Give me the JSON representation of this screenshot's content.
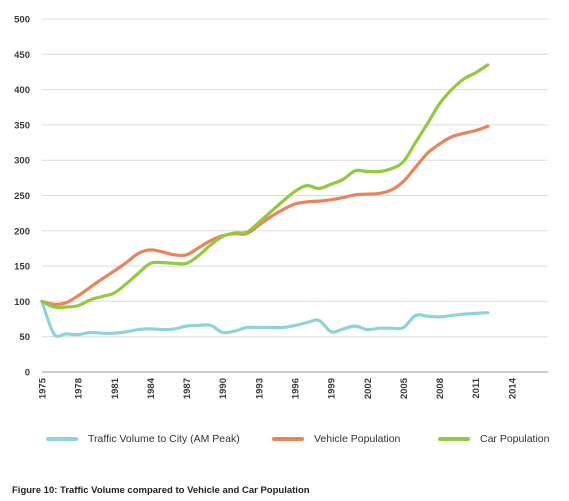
{
  "chart_data": {
    "type": "line",
    "caption": "Figure 10: Traffic Volume compared to Vehicle and Car Population",
    "ylim": [
      0,
      500
    ],
    "yticks": [
      0,
      50,
      100,
      150,
      200,
      250,
      300,
      350,
      400,
      450,
      500
    ],
    "xlim": [
      1975,
      2017
    ],
    "xticks": [
      1975,
      1978,
      1981,
      1984,
      1987,
      1990,
      1993,
      1996,
      1999,
      2002,
      2005,
      2008,
      2011,
      2014
    ],
    "grid": "horizontal",
    "legend": "bottom",
    "x": [
      1975,
      1976,
      1977,
      1978,
      1979,
      1980,
      1981,
      1982,
      1983,
      1984,
      1985,
      1986,
      1987,
      1988,
      1989,
      1990,
      1991,
      1992,
      1993,
      1994,
      1995,
      1996,
      1997,
      1998,
      1999,
      2000,
      2001,
      2002,
      2003,
      2004,
      2005,
      2006,
      2007,
      2008,
      2009,
      2010,
      2011,
      2012
    ],
    "series": [
      {
        "name": "Traffic Volume to City (AM Peak)",
        "color": "#8fd3d8",
        "values": [
          100,
          54,
          54,
          53,
          56,
          55,
          55,
          57,
          60,
          61,
          60,
          61,
          65,
          66,
          66,
          56,
          58,
          63,
          63,
          63,
          63,
          66,
          70,
          73,
          57,
          61,
          65,
          60,
          62,
          62,
          63,
          80,
          79,
          78,
          80,
          82,
          83,
          84
        ]
      },
      {
        "name": "Vehicle Population",
        "color": "#e8845c",
        "values": [
          100,
          96,
          98,
          108,
          120,
          132,
          143,
          155,
          168,
          173,
          170,
          166,
          166,
          176,
          186,
          193,
          196,
          196,
          208,
          220,
          230,
          238,
          241,
          242,
          244,
          247,
          251,
          252,
          253,
          258,
          270,
          290,
          310,
          323,
          333,
          338,
          342,
          348
        ]
      },
      {
        "name": "Car Population",
        "color": "#93c93e",
        "values": [
          100,
          92,
          92,
          94,
          102,
          107,
          112,
          125,
          140,
          154,
          155,
          154,
          154,
          165,
          180,
          192,
          197,
          198,
          212,
          227,
          242,
          256,
          264,
          260,
          266,
          273,
          285,
          284,
          284,
          288,
          298,
          325,
          352,
          380,
          400,
          415,
          424,
          435
        ]
      }
    ]
  }
}
